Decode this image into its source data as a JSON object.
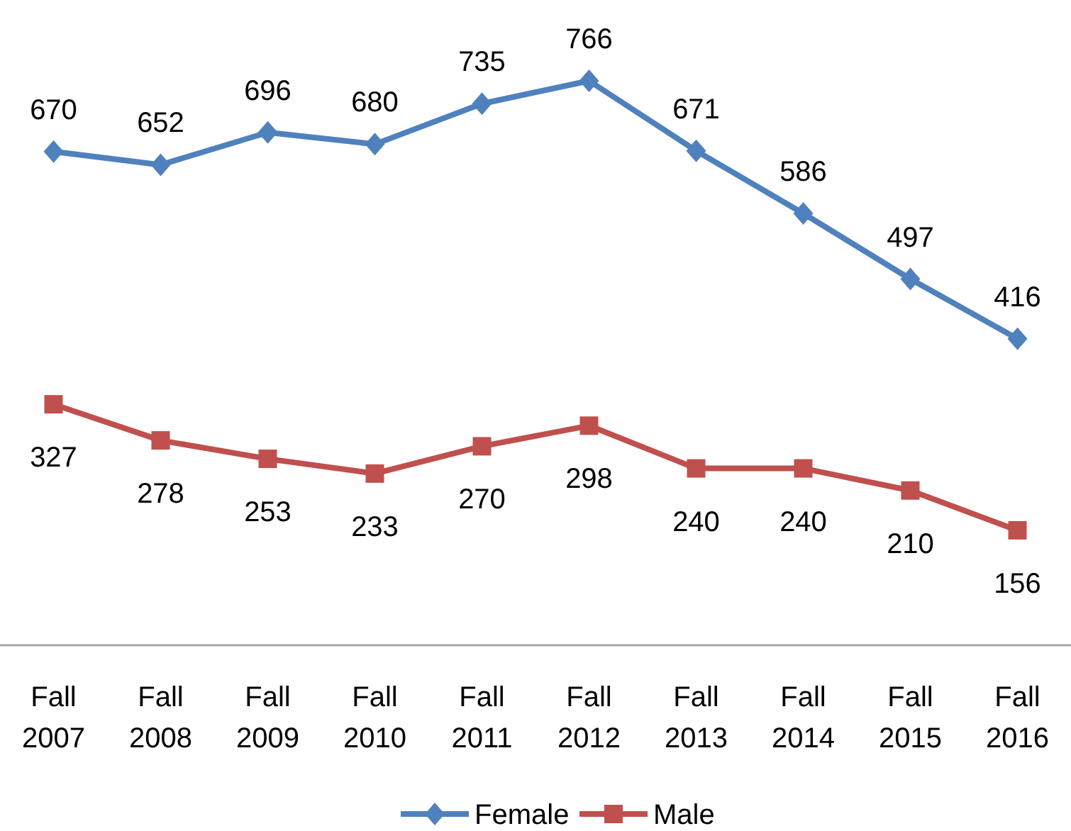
{
  "chart_data": {
    "type": "line",
    "categories": [
      "Fall 2007",
      "Fall 2008",
      "Fall 2009",
      "Fall 2010",
      "Fall 2011",
      "Fall 2012",
      "Fall 2013",
      "Fall 2014",
      "Fall 2015",
      "Fall 2016"
    ],
    "series": [
      {
        "name": "Female",
        "color": "#4f81bd",
        "marker": "diamond",
        "values": [
          670,
          652,
          696,
          680,
          735,
          766,
          671,
          586,
          497,
          416
        ]
      },
      {
        "name": "Male",
        "color": "#c0504d",
        "marker": "square",
        "values": [
          327,
          278,
          253,
          233,
          270,
          298,
          240,
          240,
          210,
          156
        ]
      }
    ],
    "data_labels": true,
    "legend": "bottom",
    "line_style": "solid"
  }
}
